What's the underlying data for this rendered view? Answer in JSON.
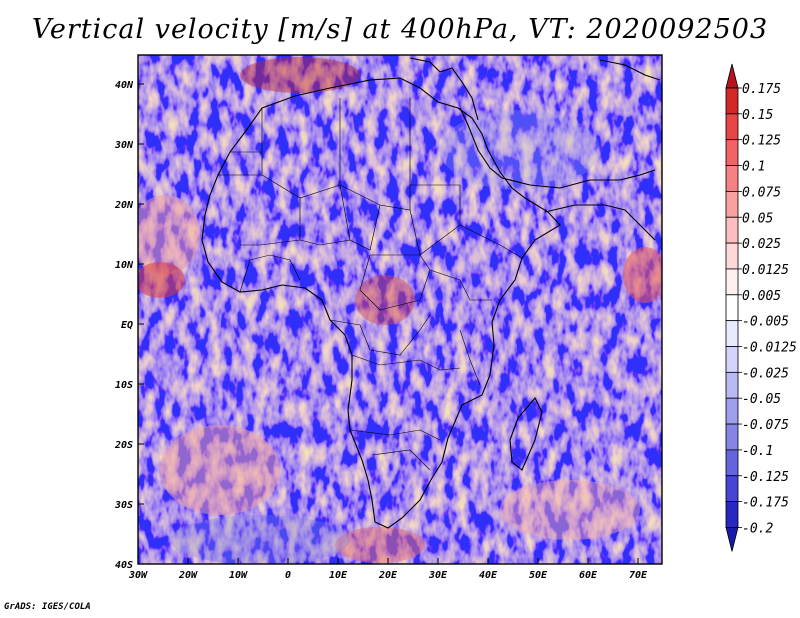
{
  "title": "Vertical velocity [m/s] at 400hPa, VT: 2020092503",
  "credit": "GrADS: IGES/COLA",
  "map": {
    "lat_labels": [
      "40N",
      "30N",
      "20N",
      "10N",
      "EQ",
      "10S",
      "20S",
      "30S",
      "40S"
    ],
    "lon_labels": [
      "30W",
      "20W",
      "10W",
      "0",
      "10E",
      "20E",
      "30E",
      "40E",
      "50E",
      "60E",
      "70E"
    ],
    "lat_range": [
      -40,
      45
    ],
    "lon_range": [
      -30,
      75
    ],
    "variable": "Vertical velocity",
    "units": "m/s",
    "level": "400hPa",
    "valid_time": "2020092503"
  },
  "colorbar": {
    "levels": [
      "0.175",
      "0.15",
      "0.125",
      "0.1",
      "0.075",
      "0.05",
      "0.025",
      "0.0125",
      "0.005",
      "-0.005",
      "-0.0125",
      "-0.025",
      "-0.05",
      "-0.075",
      "-0.1",
      "-0.125",
      "-0.175",
      "-0.2"
    ],
    "colors": [
      "#b4141e",
      "#d22828",
      "#e64646",
      "#f06464",
      "#f58282",
      "#f9a0a0",
      "#fcbebe",
      "#fdd8d8",
      "#fff0f0",
      "#ffffff",
      "#eaeaff",
      "#d2d2fb",
      "#b9b9f5",
      "#9f9fee",
      "#8585e6",
      "#6464dc",
      "#4646d2",
      "#2828c0",
      "#1a1aa8"
    ]
  }
}
